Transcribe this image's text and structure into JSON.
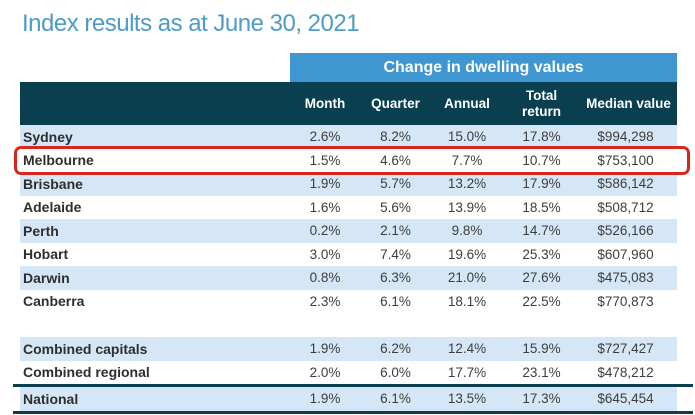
{
  "page": {
    "title": "Index results as at June 30, 2021"
  },
  "colors": {
    "title_blue": "#4e9bc8",
    "band_blue": "#3e97d0",
    "header_dark_teal": "#0a3f50",
    "row_alt_blue": "#d5e7f6",
    "highlight_red": "#d6281e"
  },
  "table": {
    "band_label": "Change in dwelling values",
    "columns": [
      "Month",
      "Quarter",
      "Annual",
      "Total return",
      "Median value"
    ],
    "rows": [
      {
        "label": "Sydney",
        "month": "2.6%",
        "quarter": "8.2%",
        "annual": "15.0%",
        "total_return": "17.8%",
        "median_value": "$994,298",
        "highlighted": false
      },
      {
        "label": "Melbourne",
        "month": "1.5%",
        "quarter": "4.6%",
        "annual": "7.7%",
        "total_return": "10.7%",
        "median_value": "$753,100",
        "highlighted": true
      },
      {
        "label": "Brisbane",
        "month": "1.9%",
        "quarter": "5.7%",
        "annual": "13.2%",
        "total_return": "17.9%",
        "median_value": "$586,142",
        "highlighted": false
      },
      {
        "label": "Adelaide",
        "month": "1.6%",
        "quarter": "5.6%",
        "annual": "13.9%",
        "total_return": "18.5%",
        "median_value": "$508,712",
        "highlighted": false
      },
      {
        "label": "Perth",
        "month": "0.2%",
        "quarter": "2.1%",
        "annual": "9.8%",
        "total_return": "14.7%",
        "median_value": "$526,166",
        "highlighted": false
      },
      {
        "label": "Hobart",
        "month": "3.0%",
        "quarter": "7.4%",
        "annual": "19.6%",
        "total_return": "25.3%",
        "median_value": "$607,960",
        "highlighted": false
      },
      {
        "label": "Darwin",
        "month": "0.8%",
        "quarter": "6.3%",
        "annual": "21.0%",
        "total_return": "27.6%",
        "median_value": "$475,083",
        "highlighted": false
      },
      {
        "label": "Canberra",
        "month": "2.3%",
        "quarter": "6.1%",
        "annual": "18.1%",
        "total_return": "22.5%",
        "median_value": "$770,873",
        "highlighted": false
      }
    ],
    "summary_rows": [
      {
        "label": "Combined capitals",
        "month": "1.9%",
        "quarter": "6.2%",
        "annual": "12.4%",
        "total_return": "15.9%",
        "median_value": "$727,427"
      },
      {
        "label": "Combined regional",
        "month": "2.0%",
        "quarter": "6.0%",
        "annual": "17.7%",
        "total_return": "23.1%",
        "median_value": "$478,212"
      }
    ],
    "national_row": {
      "label": "National",
      "month": "1.9%",
      "quarter": "6.1%",
      "annual": "13.5%",
      "total_return": "17.3%",
      "median_value": "$645,454"
    }
  }
}
